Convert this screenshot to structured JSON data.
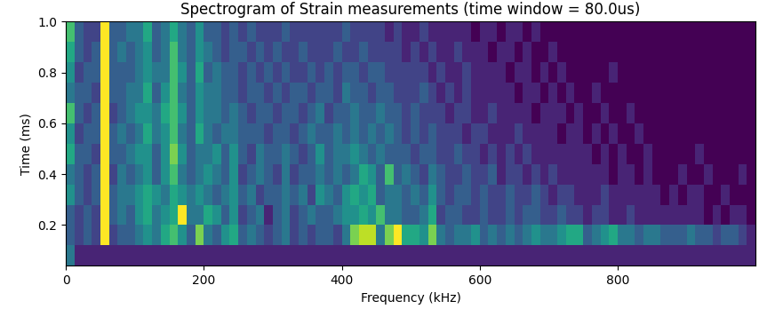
{
  "chart_data": {
    "type": "heatmap",
    "title": "Spectrogram of Strain measurements (time window = 80.0us)",
    "x_label": "Frequency (kHz)",
    "y_label": "Time (ms)",
    "xlim": [
      0,
      1000
    ],
    "ylim": [
      0.04,
      1.0
    ],
    "xticks": [
      0,
      200,
      400,
      600,
      800
    ],
    "yticks": [
      0.2,
      0.4,
      0.6,
      0.8,
      {
        "value": 1.0,
        "label": "1.0"
      }
    ],
    "value_range": [
      0,
      10
    ],
    "x_edges": [
      0,
      12.5,
      25,
      37.5,
      50,
      62.5,
      75,
      87.5,
      100,
      112.5,
      125,
      137.5,
      150,
      162.5,
      175,
      187.5,
      200,
      212.5,
      225,
      237.5,
      250,
      262.5,
      275,
      287.5,
      300,
      312.5,
      325,
      337.5,
      350,
      362.5,
      375,
      387.5,
      400,
      412.5,
      425,
      437.5,
      450,
      462.5,
      475,
      487.5,
      500,
      512.5,
      525,
      537.5,
      550,
      562.5,
      575,
      587.5,
      600,
      612.5,
      625,
      637.5,
      650,
      662.5,
      675,
      687.5,
      700,
      712.5,
      725,
      737.5,
      750,
      762.5,
      775,
      787.5,
      800,
      812.5,
      825,
      837.5,
      850,
      862.5,
      875,
      887.5,
      900,
      912.5,
      925,
      937.5,
      950,
      962.5,
      975,
      987.5,
      1000
    ],
    "y_edges": [
      0.04,
      0.12,
      0.2,
      0.28,
      0.36,
      0.44,
      0.52,
      0.6,
      0.68,
      0.76,
      0.84,
      0.92,
      1.0
    ],
    "cells": [
      [
        4,
        1,
        1,
        1,
        1,
        1,
        1,
        1,
        1,
        1,
        1,
        1,
        1,
        1,
        1,
        1,
        1,
        1,
        1,
        1,
        1,
        1,
        1,
        1,
        1,
        1,
        1,
        1,
        1,
        1,
        1,
        1,
        1,
        1,
        1,
        1,
        1,
        1,
        1,
        1,
        1,
        1,
        1,
        1,
        1,
        1,
        1,
        1,
        1,
        1,
        1,
        1,
        1,
        1,
        1,
        1,
        1,
        1,
        1,
        1,
        1,
        1,
        1,
        1,
        1,
        1,
        1,
        1,
        1,
        1,
        1,
        1,
        1,
        1,
        1,
        1,
        1,
        1,
        1,
        1
      ],
      [
        3,
        2,
        3,
        2,
        10,
        2,
        3,
        3,
        4,
        5,
        4,
        6,
        7,
        5,
        3,
        8,
        4,
        3,
        5,
        6,
        3,
        4,
        3,
        2,
        3,
        4,
        2,
        3,
        2,
        3,
        3,
        2,
        4,
        8,
        9,
        9,
        4,
        8,
        10,
        6,
        6,
        5,
        8,
        4,
        3,
        4,
        4,
        5,
        3,
        4,
        3,
        4,
        3,
        4,
        5,
        4,
        4,
        5,
        6,
        6,
        3,
        4,
        5,
        6,
        4,
        4,
        3,
        4,
        4,
        3,
        3,
        3,
        4,
        3,
        3,
        2,
        3,
        3,
        2,
        1
      ],
      [
        3,
        2,
        3,
        2,
        10,
        3,
        4,
        3,
        5,
        6,
        4,
        5,
        6,
        10,
        4,
        4,
        6,
        5,
        3,
        5,
        2,
        3,
        4,
        1,
        3,
        4,
        2,
        3,
        4,
        3,
        3,
        4,
        5,
        5,
        6,
        5,
        7,
        4,
        4,
        3,
        3,
        4,
        6,
        2,
        3,
        3,
        2,
        2,
        3,
        2,
        2,
        3,
        2,
        3,
        3,
        2,
        2,
        3,
        2,
        2,
        1,
        2,
        2,
        1,
        1,
        2,
        1,
        1,
        1,
        1,
        1,
        1,
        1,
        1,
        0,
        1,
        0,
        1,
        1,
        0
      ],
      [
        5,
        3,
        2,
        3,
        10,
        3,
        4,
        4,
        5,
        6,
        5,
        4,
        6,
        5,
        4,
        5,
        4,
        3,
        4,
        5,
        3,
        4,
        2,
        3,
        3,
        4,
        3,
        4,
        2,
        5,
        4,
        3,
        5,
        6,
        5,
        6,
        3,
        4,
        4,
        3,
        4,
        3,
        5,
        3,
        2,
        3,
        3,
        2,
        3,
        2,
        2,
        3,
        2,
        2,
        3,
        2,
        1,
        2,
        2,
        1,
        1,
        1,
        2,
        1,
        1,
        1,
        1,
        1,
        1,
        0,
        1,
        0,
        1,
        1,
        0,
        0,
        1,
        0,
        0,
        0
      ],
      [
        4,
        3,
        2,
        3,
        10,
        2,
        4,
        3,
        4,
        5,
        3,
        5,
        7,
        4,
        3,
        4,
        5,
        4,
        3,
        5,
        2,
        3,
        4,
        3,
        2,
        4,
        2,
        3,
        3,
        4,
        3,
        4,
        3,
        4,
        6,
        5,
        3,
        7,
        3,
        4,
        3,
        2,
        4,
        3,
        2,
        2,
        3,
        2,
        2,
        3,
        1,
        2,
        2,
        1,
        2,
        1,
        2,
        1,
        1,
        1,
        1,
        1,
        1,
        0,
        1,
        1,
        0,
        1,
        0,
        0,
        0,
        1,
        0,
        0,
        1,
        0,
        0,
        0,
        1,
        0
      ],
      [
        6,
        3,
        3,
        2,
        10,
        3,
        3,
        4,
        5,
        5,
        3,
        5,
        8,
        5,
        3,
        4,
        4,
        5,
        3,
        5,
        3,
        2,
        4,
        3,
        3,
        4,
        3,
        2,
        3,
        5,
        3,
        4,
        4,
        5,
        4,
        3,
        4,
        3,
        3,
        3,
        2,
        3,
        3,
        2,
        2,
        3,
        2,
        2,
        1,
        2,
        1,
        2,
        1,
        2,
        1,
        1,
        1,
        1,
        1,
        1,
        1,
        0,
        1,
        0,
        1,
        0,
        0,
        1,
        0,
        0,
        0,
        0,
        0,
        1,
        0,
        0,
        0,
        0,
        0,
        0
      ],
      [
        5,
        2,
        3,
        3,
        10,
        3,
        4,
        3,
        4,
        6,
        4,
        5,
        7,
        4,
        3,
        6,
        4,
        3,
        4,
        4,
        3,
        3,
        3,
        2,
        3,
        3,
        2,
        3,
        4,
        3,
        3,
        4,
        3,
        4,
        3,
        4,
        3,
        4,
        3,
        2,
        3,
        2,
        3,
        2,
        2,
        2,
        1,
        2,
        2,
        1,
        1,
        1,
        2,
        1,
        1,
        1,
        1,
        0,
        1,
        1,
        0,
        1,
        0,
        1,
        0,
        0,
        1,
        0,
        0,
        0,
        0,
        0,
        0,
        0,
        0,
        0,
        0,
        0,
        0,
        0
      ],
      [
        7,
        3,
        2,
        3,
        10,
        2,
        3,
        4,
        5,
        5,
        4,
        6,
        7,
        5,
        3,
        5,
        4,
        4,
        3,
        4,
        3,
        2,
        3,
        3,
        2,
        3,
        3,
        2,
        3,
        4,
        2,
        3,
        3,
        4,
        3,
        3,
        4,
        3,
        3,
        2,
        3,
        2,
        2,
        2,
        1,
        2,
        2,
        1,
        1,
        2,
        1,
        1,
        1,
        1,
        0,
        1,
        1,
        1,
        0,
        1,
        0,
        0,
        1,
        0,
        0,
        1,
        0,
        0,
        0,
        0,
        0,
        0,
        0,
        0,
        0,
        0,
        0,
        0,
        0,
        0
      ],
      [
        4,
        3,
        3,
        2,
        10,
        3,
        3,
        4,
        4,
        6,
        3,
        5,
        7,
        4,
        3,
        5,
        4,
        4,
        3,
        3,
        2,
        3,
        3,
        2,
        3,
        2,
        3,
        3,
        2,
        3,
        3,
        2,
        4,
        3,
        3,
        2,
        3,
        3,
        2,
        2,
        2,
        3,
        2,
        1,
        2,
        1,
        2,
        1,
        1,
        1,
        1,
        1,
        0,
        1,
        1,
        0,
        1,
        0,
        1,
        0,
        0,
        1,
        0,
        0,
        0,
        0,
        0,
        0,
        0,
        0,
        0,
        0,
        0,
        0,
        0,
        0,
        0,
        0,
        0,
        0
      ],
      [
        5,
        2,
        3,
        3,
        10,
        3,
        3,
        3,
        4,
        5,
        4,
        4,
        7,
        5,
        3,
        6,
        3,
        4,
        3,
        3,
        2,
        3,
        2,
        3,
        2,
        3,
        2,
        2,
        3,
        2,
        3,
        2,
        3,
        3,
        2,
        3,
        3,
        2,
        2,
        2,
        2,
        2,
        1,
        2,
        1,
        1,
        2,
        1,
        1,
        1,
        1,
        0,
        1,
        1,
        0,
        1,
        0,
        1,
        0,
        0,
        0,
        0,
        0,
        1,
        0,
        0,
        0,
        0,
        0,
        0,
        0,
        0,
        0,
        0,
        0,
        0,
        0,
        0,
        0,
        0
      ],
      [
        6,
        3,
        2,
        3,
        10,
        3,
        4,
        3,
        4,
        5,
        3,
        4,
        7,
        4,
        3,
        5,
        4,
        3,
        2,
        3,
        3,
        2,
        3,
        2,
        3,
        2,
        2,
        3,
        2,
        2,
        2,
        3,
        2,
        2,
        3,
        2,
        2,
        2,
        2,
        1,
        2,
        1,
        2,
        1,
        1,
        2,
        1,
        1,
        1,
        0,
        1,
        1,
        0,
        1,
        0,
        0,
        1,
        0,
        0,
        0,
        0,
        0,
        0,
        0,
        0,
        0,
        0,
        0,
        0,
        0,
        0,
        0,
        0,
        0,
        0,
        0,
        0,
        0,
        0,
        0
      ],
      [
        7,
        3,
        2,
        2,
        10,
        3,
        3,
        4,
        4,
        6,
        3,
        4,
        6,
        4,
        3,
        5,
        3,
        3,
        2,
        3,
        2,
        3,
        2,
        2,
        2,
        3,
        2,
        2,
        2,
        2,
        2,
        2,
        3,
        2,
        2,
        2,
        2,
        1,
        2,
        1,
        1,
        2,
        1,
        1,
        1,
        1,
        1,
        0,
        1,
        1,
        0,
        1,
        1,
        0,
        1,
        0,
        0,
        0,
        0,
        0,
        0,
        0,
        0,
        0,
        0,
        0,
        0,
        0,
        0,
        0,
        0,
        0,
        0,
        0,
        0,
        0,
        0,
        0,
        0,
        0
      ]
    ]
  }
}
